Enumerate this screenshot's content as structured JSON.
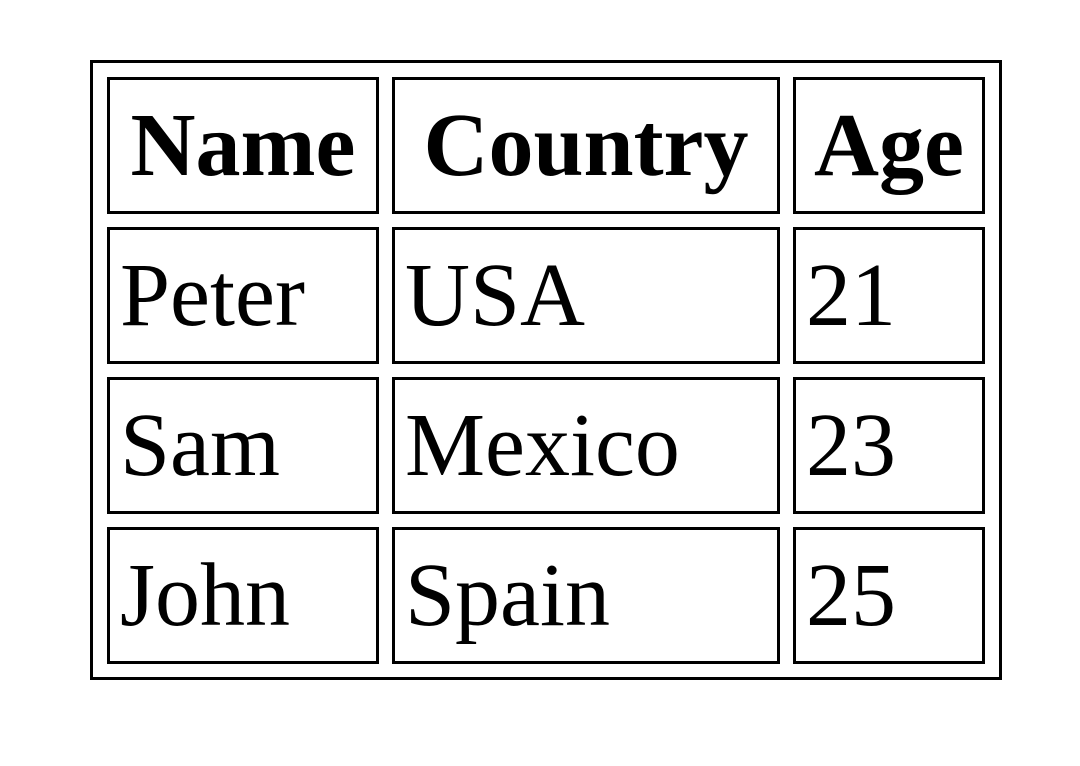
{
  "table": {
    "headers": [
      "Name",
      "Country",
      "Age"
    ],
    "rows": [
      [
        "Peter",
        "USA",
        "21"
      ],
      [
        "Sam",
        "Mexico",
        "23"
      ],
      [
        "John",
        "Spain",
        "25"
      ]
    ]
  }
}
